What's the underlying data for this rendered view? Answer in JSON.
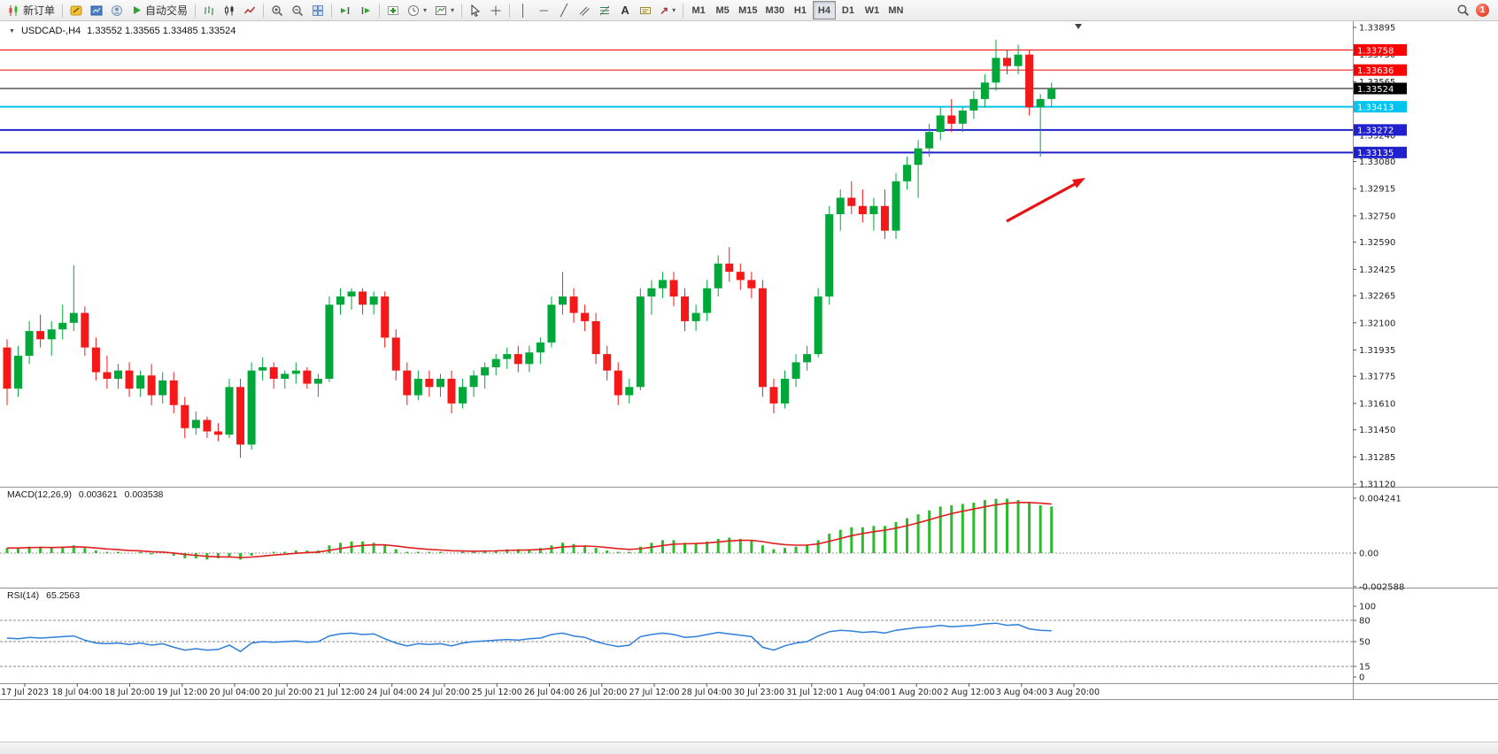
{
  "colors": {
    "candle_up": "#00A83A",
    "candle_down": "#F51818",
    "macd_hist": "#2DBB2D",
    "macd_signal": "#E02020",
    "rsi_line": "#2F7ED8",
    "arrow": "#E81212",
    "level_red": "#FF0000",
    "level_cyan": "#00C4EE",
    "level_blue": "#2020CC",
    "price_line": "#000000"
  },
  "toolbar": {
    "new_order_label": "新订单",
    "autotrading_label": "自动交易",
    "text_tool_label": "A",
    "timeframes": [
      "M1",
      "M5",
      "M15",
      "M30",
      "H1",
      "H4",
      "D1",
      "W1",
      "MN"
    ],
    "active_timeframe": "H4",
    "notification_count": "1"
  },
  "chart": {
    "symbol_period": "USDCAD-,H4",
    "ohlc": "1.33552 1.33565 1.33485 1.33524",
    "open": "1.33552",
    "high": "1.33565",
    "low": "1.33485",
    "close": "1.33524"
  },
  "price_axis": {
    "ticks": [
      "1.33895",
      "1.33730",
      "1.33565",
      "1.33240",
      "1.33080",
      "1.32915",
      "1.32750",
      "1.32590",
      "1.32425",
      "1.32265",
      "1.32100",
      "1.31935",
      "1.31775",
      "1.31610",
      "1.31450",
      "1.31285",
      "1.31120"
    ]
  },
  "time_axis": {
    "labels": [
      "17 Jul 2023",
      "18 Jul 04:00",
      "18 Jul 20:00",
      "19 Jul 12:00",
      "20 Jul 04:00",
      "20 Jul 20:00",
      "21 Jul 12:00",
      "24 Jul 04:00",
      "24 Jul 20:00",
      "25 Jul 12:00",
      "26 Jul 04:00",
      "26 Jul 20:00",
      "27 Jul 12:00",
      "28 Jul 04:00",
      "30 Jul 23:00",
      "31 Jul 12:00",
      "1 Aug 04:00",
      "1 Aug 20:00",
      "2 Aug 12:00",
      "3 Aug 04:00",
      "3 Aug 20:00"
    ]
  },
  "indicators": {
    "macd": {
      "label": "MACD(12,26,9)",
      "value1": "0.003621",
      "value2": "0.003538",
      "axis": [
        "0.004241",
        "0.00",
        "-0.002588"
      ]
    },
    "rsi": {
      "label": "RSI(14)",
      "value": "65.2563",
      "axis": [
        "100",
        "80",
        "50",
        "15",
        "0"
      ]
    }
  },
  "chart_data": {
    "type": "candlestick",
    "symbol": "USDCAD-",
    "timeframe": "H4",
    "y_range": [
      1.3112,
      1.33895
    ],
    "levels": [
      {
        "label": "1.33758",
        "price": 1.33758,
        "color": "#FF0000",
        "width": 1
      },
      {
        "label": "1.33636",
        "price": 1.33636,
        "color": "#FF0000",
        "width": 1
      },
      {
        "label": "1.33524",
        "price": 1.33524,
        "color": "#000000",
        "width": 1
      },
      {
        "label": "1.33413",
        "price": 1.33413,
        "color": "#00C4EE",
        "width": 2
      },
      {
        "label": "1.33272",
        "price": 1.33272,
        "color": "#2020CC",
        "width": 2
      },
      {
        "label": "1.33135",
        "price": 1.33135,
        "color": "#2020CC",
        "width": 2
      }
    ],
    "candles": [
      [
        1.3195,
        1.32,
        1.316,
        1.317
      ],
      [
        1.317,
        1.3196,
        1.3165,
        1.319
      ],
      [
        1.319,
        1.3211,
        1.3185,
        1.3205
      ],
      [
        1.3205,
        1.3215,
        1.3195,
        1.32
      ],
      [
        1.32,
        1.3211,
        1.319,
        1.3206
      ],
      [
        1.3206,
        1.3221,
        1.32,
        1.321
      ],
      [
        1.321,
        1.3245,
        1.3205,
        1.3216
      ],
      [
        1.3216,
        1.322,
        1.319,
        1.3195
      ],
      [
        1.3195,
        1.3201,
        1.3175,
        1.318
      ],
      [
        1.318,
        1.319,
        1.317,
        1.3176
      ],
      [
        1.3176,
        1.3185,
        1.317,
        1.3181
      ],
      [
        1.3181,
        1.3186,
        1.3165,
        1.317
      ],
      [
        1.317,
        1.3181,
        1.3165,
        1.3178
      ],
      [
        1.3178,
        1.3185,
        1.316,
        1.3166
      ],
      [
        1.3166,
        1.318,
        1.3161,
        1.3175
      ],
      [
        1.3175,
        1.318,
        1.3155,
        1.316
      ],
      [
        1.316,
        1.3165,
        1.314,
        1.3146
      ],
      [
        1.3146,
        1.3156,
        1.3142,
        1.3151
      ],
      [
        1.3151,
        1.3153,
        1.314,
        1.3144
      ],
      [
        1.3144,
        1.3149,
        1.3138,
        1.3142
      ],
      [
        1.3142,
        1.3176,
        1.314,
        1.3171
      ],
      [
        1.3171,
        1.3176,
        1.3128,
        1.3136
      ],
      [
        1.3136,
        1.3186,
        1.3133,
        1.3181
      ],
      [
        1.3181,
        1.3189,
        1.3175,
        1.3183
      ],
      [
        1.3183,
        1.3186,
        1.317,
        1.3176
      ],
      [
        1.3176,
        1.3181,
        1.317,
        1.3179
      ],
      [
        1.3179,
        1.3186,
        1.3173,
        1.3181
      ],
      [
        1.3181,
        1.3183,
        1.317,
        1.3173
      ],
      [
        1.3173,
        1.3179,
        1.3165,
        1.3176
      ],
      [
        1.3176,
        1.3226,
        1.3174,
        1.3221
      ],
      [
        1.3221,
        1.3231,
        1.3215,
        1.3226
      ],
      [
        1.3226,
        1.3231,
        1.3218,
        1.3229
      ],
      [
        1.3229,
        1.3231,
        1.3215,
        1.3221
      ],
      [
        1.3221,
        1.3229,
        1.3215,
        1.3226
      ],
      [
        1.3226,
        1.3229,
        1.3195,
        1.3201
      ],
      [
        1.3201,
        1.3206,
        1.3175,
        1.3181
      ],
      [
        1.3181,
        1.3186,
        1.316,
        1.3166
      ],
      [
        1.3166,
        1.3181,
        1.3163,
        1.3176
      ],
      [
        1.3176,
        1.3181,
        1.3165,
        1.3171
      ],
      [
        1.3171,
        1.3179,
        1.3165,
        1.3176
      ],
      [
        1.3176,
        1.3181,
        1.3155,
        1.3161
      ],
      [
        1.3161,
        1.3176,
        1.3158,
        1.3171
      ],
      [
        1.3171,
        1.3181,
        1.3165,
        1.3178
      ],
      [
        1.3178,
        1.3186,
        1.317,
        1.3183
      ],
      [
        1.3183,
        1.3191,
        1.3178,
        1.3188
      ],
      [
        1.3188,
        1.3195,
        1.3182,
        1.3191
      ],
      [
        1.3191,
        1.3196,
        1.318,
        1.3185
      ],
      [
        1.3185,
        1.3196,
        1.318,
        1.3192
      ],
      [
        1.3192,
        1.3201,
        1.3185,
        1.3198
      ],
      [
        1.3198,
        1.3226,
        1.3195,
        1.3221
      ],
      [
        1.3221,
        1.3241,
        1.3215,
        1.3226
      ],
      [
        1.3226,
        1.3231,
        1.321,
        1.3216
      ],
      [
        1.3216,
        1.3221,
        1.3205,
        1.3211
      ],
      [
        1.3211,
        1.3216,
        1.3185,
        1.3191
      ],
      [
        1.3191,
        1.3196,
        1.3175,
        1.3181
      ],
      [
        1.3181,
        1.3186,
        1.316,
        1.3166
      ],
      [
        1.3166,
        1.3176,
        1.3161,
        1.3171
      ],
      [
        1.3171,
        1.3231,
        1.3169,
        1.3226
      ],
      [
        1.3226,
        1.3236,
        1.3215,
        1.3231
      ],
      [
        1.3231,
        1.3241,
        1.3225,
        1.3236
      ],
      [
        1.3236,
        1.3241,
        1.322,
        1.3226
      ],
      [
        1.3226,
        1.3231,
        1.3205,
        1.3211
      ],
      [
        1.3211,
        1.3221,
        1.3205,
        1.3216
      ],
      [
        1.3216,
        1.3236,
        1.3211,
        1.3231
      ],
      [
        1.3231,
        1.3251,
        1.3226,
        1.3246
      ],
      [
        1.3246,
        1.3256,
        1.3235,
        1.3241
      ],
      [
        1.3241,
        1.3246,
        1.323,
        1.3236
      ],
      [
        1.3236,
        1.3241,
        1.3225,
        1.3231
      ],
      [
        1.3231,
        1.3236,
        1.3165,
        1.3171
      ],
      [
        1.3171,
        1.3176,
        1.3155,
        1.3161
      ],
      [
        1.3161,
        1.3181,
        1.3158,
        1.3176
      ],
      [
        1.3176,
        1.3191,
        1.3171,
        1.3186
      ],
      [
        1.3186,
        1.3196,
        1.3181,
        1.3191
      ],
      [
        1.3191,
        1.3231,
        1.3189,
        1.3226
      ],
      [
        1.3226,
        1.3281,
        1.3221,
        1.3276
      ],
      [
        1.3276,
        1.3291,
        1.3266,
        1.3286
      ],
      [
        1.3286,
        1.3296,
        1.3276,
        1.3281
      ],
      [
        1.3281,
        1.3291,
        1.3271,
        1.3276
      ],
      [
        1.3276,
        1.3286,
        1.3266,
        1.3281
      ],
      [
        1.3281,
        1.3291,
        1.3261,
        1.3266
      ],
      [
        1.3266,
        1.3301,
        1.3261,
        1.3296
      ],
      [
        1.3296,
        1.3311,
        1.3291,
        1.3306
      ],
      [
        1.3306,
        1.3321,
        1.3286,
        1.3316
      ],
      [
        1.3316,
        1.3331,
        1.3311,
        1.3326
      ],
      [
        1.3326,
        1.3341,
        1.3321,
        1.3336
      ],
      [
        1.3336,
        1.3346,
        1.3326,
        1.3331
      ],
      [
        1.3331,
        1.3341,
        1.3326,
        1.3339
      ],
      [
        1.3339,
        1.3351,
        1.3334,
        1.3346
      ],
      [
        1.3346,
        1.3361,
        1.3341,
        1.3356
      ],
      [
        1.3356,
        1.3382,
        1.3351,
        1.3371
      ],
      [
        1.3371,
        1.3376,
        1.3361,
        1.3366
      ],
      [
        1.3366,
        1.3379,
        1.3361,
        1.3373
      ],
      [
        1.3373,
        1.3376,
        1.3336,
        1.3341
      ],
      [
        1.3341,
        1.3349,
        1.3311,
        1.3346
      ],
      [
        1.3346,
        1.3356,
        1.3341,
        1.33524
      ]
    ],
    "macd_hist": [
      0.0004,
      0.0004,
      0.0005,
      0.0005,
      0.0004,
      0.0005,
      0.0006,
      0.0004,
      0.0002,
      0.0001,
      0.0001,
      0.0,
      0.0001,
      -0.0001,
      0.0,
      -0.0002,
      -0.0004,
      -0.0004,
      -0.0005,
      -0.0004,
      -0.0003,
      -0.0005,
      -0.0002,
      0.0,
      0.0001,
      0.0001,
      0.0002,
      0.0002,
      0.0002,
      0.0006,
      0.0008,
      0.0009,
      0.0009,
      0.0008,
      0.0006,
      0.0003,
      0.0001,
      0.0001,
      0.0001,
      0.0001,
      0.0,
      0.0001,
      0.0001,
      0.0002,
      0.0002,
      0.0003,
      0.0003,
      0.0003,
      0.0004,
      0.0006,
      0.0008,
      0.0007,
      0.0006,
      0.0004,
      0.0002,
      0.0001,
      0.0001,
      0.0005,
      0.0008,
      0.001,
      0.001,
      0.0008,
      0.0008,
      0.0009,
      0.0011,
      0.0012,
      0.0011,
      0.001,
      0.0006,
      0.0003,
      0.0004,
      0.0005,
      0.0006,
      0.001,
      0.0015,
      0.0018,
      0.002,
      0.002,
      0.0021,
      0.0021,
      0.0024,
      0.0027,
      0.003,
      0.0033,
      0.0036,
      0.0037,
      0.0038,
      0.0039,
      0.0041,
      0.0042,
      0.0042,
      0.0041,
      0.0039,
      0.0037,
      0.0036
    ],
    "rsi": [
      55,
      54,
      56,
      55,
      56,
      57,
      58,
      52,
      48,
      47,
      48,
      46,
      48,
      45,
      47,
      42,
      38,
      40,
      38,
      39,
      45,
      36,
      48,
      50,
      49,
      50,
      51,
      49,
      50,
      58,
      61,
      62,
      60,
      61,
      54,
      48,
      44,
      47,
      46,
      47,
      44,
      48,
      50,
      51,
      52,
      53,
      52,
      54,
      55,
      60,
      62,
      58,
      56,
      50,
      46,
      43,
      45,
      57,
      60,
      62,
      60,
      56,
      57,
      60,
      63,
      61,
      59,
      57,
      42,
      38,
      44,
      48,
      50,
      58,
      64,
      66,
      65,
      63,
      64,
      62,
      66,
      68,
      70,
      71,
      73,
      71,
      72,
      73,
      75,
      76,
      73,
      74,
      68,
      66,
      65.26
    ]
  }
}
